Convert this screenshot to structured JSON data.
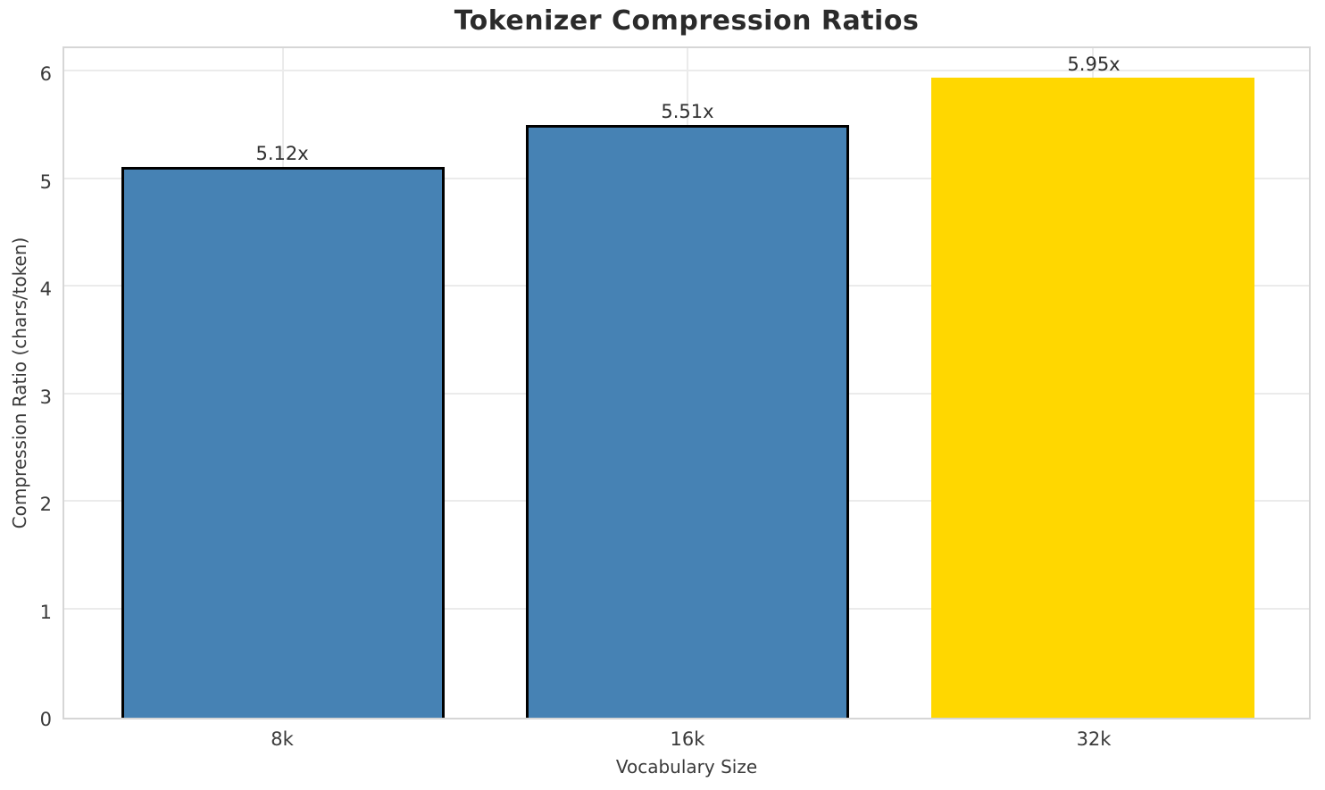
{
  "chart_data": {
    "type": "bar",
    "title": "Tokenizer Compression Ratios",
    "xlabel": "Vocabulary Size",
    "ylabel": "Compression Ratio (chars/token)",
    "categories": [
      "8k",
      "16k",
      "32k"
    ],
    "values": [
      5.12,
      5.51,
      5.95
    ],
    "value_labels": [
      "5.12x",
      "5.51x",
      "5.95x"
    ],
    "ylim": [
      0,
      6.26
    ],
    "yticks": [
      0,
      1,
      2,
      3,
      4,
      5,
      6
    ],
    "grid": true,
    "legend": "none",
    "bar_colors": [
      "#4682B4",
      "#4682B4",
      "#FFD700"
    ],
    "bar_edge_colors": [
      "#000000",
      "#000000",
      "none"
    ],
    "colors": {
      "grid": "#ebebeb",
      "spine": "#d6d6d6",
      "title_text": "#2b2b2b",
      "tick_text": "#3a3a3a",
      "annotation_text": "#303030",
      "background": "#ffffff"
    }
  }
}
